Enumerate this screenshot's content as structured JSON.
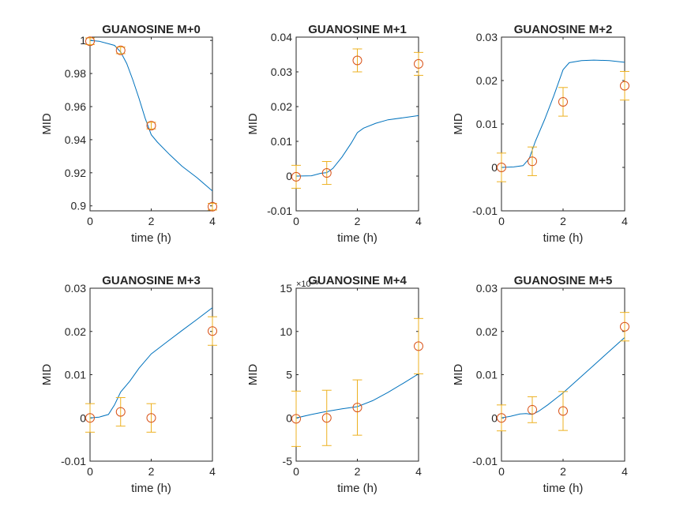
{
  "colors": {
    "model_line": "#0072BD",
    "marker": "#D95319",
    "errorbar": "#EDB120",
    "axis": "#262626",
    "background": "#ffffff"
  },
  "chart_data": [
    {
      "type": "line",
      "title": "GUANOSINE M+0",
      "xlabel": "time (h)",
      "ylabel": "MID",
      "xlim": [
        0,
        4
      ],
      "ylim": [
        0.897,
        1.002
      ],
      "xticks": [
        0,
        2,
        4
      ],
      "xtick_labels": [
        "0",
        "2",
        "4"
      ],
      "yticks": [
        0.9,
        0.92,
        0.94,
        0.96,
        0.98,
        1
      ],
      "ytick_labels": [
        "0.9",
        "0.92",
        "0.94",
        "0.96",
        "0.98",
        "1"
      ],
      "exponent_label": "",
      "series": [
        {
          "kind": "line",
          "x": [
            0,
            0.3,
            0.6,
            0.8,
            1.0,
            1.2,
            1.4,
            1.6,
            1.8,
            2.0,
            2.2,
            2.6,
            3.0,
            3.5,
            4.0
          ],
          "y": [
            1.0,
            0.9995,
            0.998,
            0.997,
            0.993,
            0.986,
            0.976,
            0.965,
            0.953,
            0.943,
            0.9385,
            0.931,
            0.924,
            0.917,
            0.909
          ]
        },
        {
          "kind": "errorbar",
          "x": [
            0,
            1,
            2,
            4
          ],
          "y": [
            0.9995,
            0.994,
            0.9485,
            0.8995
          ],
          "err": [
            0.002,
            0.002,
            0.002,
            0.002
          ]
        }
      ]
    },
    {
      "type": "line",
      "title": "GUANOSINE M+1",
      "xlabel": "time (h)",
      "ylabel": "MID",
      "xlim": [
        0,
        4
      ],
      "ylim": [
        -0.01,
        0.04
      ],
      "xticks": [
        0,
        2,
        4
      ],
      "xtick_labels": [
        "0",
        "2",
        "4"
      ],
      "yticks": [
        -0.01,
        0,
        0.01,
        0.02,
        0.03,
        0.04
      ],
      "ytick_labels": [
        "-0.01",
        "0",
        "0.01",
        "0.02",
        "0.03",
        "0.04"
      ],
      "exponent_label": "",
      "series": [
        {
          "kind": "line",
          "x": [
            0,
            0.5,
            0.8,
            1.0,
            1.2,
            1.5,
            1.8,
            2.0,
            2.2,
            2.6,
            3.0,
            3.5,
            4.0
          ],
          "y": [
            0,
            0.0001,
            0.0008,
            0.001,
            0.0022,
            0.0055,
            0.0095,
            0.0125,
            0.0138,
            0.0152,
            0.0162,
            0.0168,
            0.0174
          ]
        },
        {
          "kind": "errorbar",
          "x": [
            0,
            1,
            2,
            4
          ],
          "y": [
            -0.0002,
            0.0009,
            0.0333,
            0.0323
          ],
          "err": [
            0.0033,
            0.0033,
            0.0033,
            0.0033
          ]
        }
      ]
    },
    {
      "type": "line",
      "title": "GUANOSINE M+2",
      "xlabel": "time (h)",
      "ylabel": "MID",
      "xlim": [
        0,
        4
      ],
      "ylim": [
        -0.01,
        0.03
      ],
      "xticks": [
        0,
        2,
        4
      ],
      "xtick_labels": [
        "0",
        "2",
        "4"
      ],
      "yticks": [
        -0.01,
        0,
        0.01,
        0.02,
        0.03
      ],
      "ytick_labels": [
        "-0.01",
        "0",
        "0.01",
        "0.02",
        "0.03"
      ],
      "exponent_label": "",
      "series": [
        {
          "kind": "line",
          "x": [
            0,
            0.4,
            0.7,
            0.9,
            1.1,
            1.4,
            1.7,
            2.0,
            2.2,
            2.6,
            3.0,
            3.5,
            4.0
          ],
          "y": [
            0,
            0.0001,
            0.0004,
            0.002,
            0.006,
            0.011,
            0.0165,
            0.0225,
            0.0241,
            0.0246,
            0.0247,
            0.0246,
            0.0242
          ]
        },
        {
          "kind": "errorbar",
          "x": [
            0,
            1,
            2,
            4
          ],
          "y": [
            0,
            0.0014,
            0.0151,
            0.0188
          ],
          "err": [
            0.0033,
            0.0033,
            0.0033,
            0.0033
          ]
        }
      ]
    },
    {
      "type": "line",
      "title": "GUANOSINE M+3",
      "xlabel": "time (h)",
      "ylabel": "MID",
      "xlim": [
        0,
        4
      ],
      "ylim": [
        -0.01,
        0.03
      ],
      "xticks": [
        0,
        2,
        4
      ],
      "xtick_labels": [
        "0",
        "2",
        "4"
      ],
      "yticks": [
        -0.01,
        0,
        0.01,
        0.02,
        0.03
      ],
      "ytick_labels": [
        "-0.01",
        "0",
        "0.01",
        "0.02",
        "0.03"
      ],
      "exponent_label": "",
      "series": [
        {
          "kind": "line",
          "x": [
            0,
            0.3,
            0.6,
            0.8,
            1.0,
            1.3,
            1.6,
            2.0,
            2.5,
            3.0,
            3.5,
            4.0
          ],
          "y": [
            0,
            0.0002,
            0.0008,
            0.003,
            0.006,
            0.0085,
            0.0115,
            0.0148,
            0.0175,
            0.0202,
            0.0228,
            0.0255
          ]
        },
        {
          "kind": "errorbar",
          "x": [
            0,
            1,
            2,
            4
          ],
          "y": [
            0,
            0.0014,
            0,
            0.0201
          ],
          "err": [
            0.0033,
            0.0033,
            0.0033,
            0.0033
          ]
        }
      ]
    },
    {
      "type": "line",
      "title": "GUANOSINE M+4",
      "xlabel": "time (h)",
      "ylabel": "MID",
      "xlim": [
        0,
        4
      ],
      "ylim": [
        -5,
        15
      ],
      "xticks": [
        0,
        2,
        4
      ],
      "xtick_labels": [
        "0",
        "2",
        "4"
      ],
      "yticks": [
        -5,
        0,
        5,
        10,
        15
      ],
      "ytick_labels": [
        "-5",
        "0",
        "5",
        "10",
        "15"
      ],
      "exponent_label": "×10⁻³",
      "series": [
        {
          "kind": "line",
          "x": [
            0,
            0.5,
            1.0,
            1.5,
            2.0,
            2.5,
            3.0,
            3.5,
            4.0
          ],
          "y": [
            0,
            0.4,
            0.75,
            1.05,
            1.3,
            2.0,
            2.95,
            4.0,
            5.1
          ]
        },
        {
          "kind": "errorbar",
          "x": [
            0,
            1,
            2,
            4
          ],
          "y": [
            -0.1,
            0,
            1.2,
            8.3
          ],
          "err": [
            3.2,
            3.2,
            3.2,
            3.2
          ]
        }
      ]
    },
    {
      "type": "line",
      "title": "GUANOSINE M+5",
      "xlabel": "time (h)",
      "ylabel": "MID",
      "xlim": [
        0,
        4
      ],
      "ylim": [
        -0.01,
        0.03
      ],
      "xticks": [
        0,
        2,
        4
      ],
      "xtick_labels": [
        "0",
        "2",
        "4"
      ],
      "yticks": [
        -0.01,
        0,
        0.01,
        0.02,
        0.03
      ],
      "ytick_labels": [
        "-0.01",
        "0",
        "0.01",
        "0.02",
        "0.03"
      ],
      "exponent_label": "",
      "series": [
        {
          "kind": "line",
          "x": [
            0,
            0.3,
            0.6,
            0.8,
            1.0,
            1.2,
            1.5,
            2.0,
            2.5,
            3.0,
            3.5,
            4.0
          ],
          "y": [
            0,
            0.0004,
            0.0009,
            0.001,
            0.0008,
            0.0015,
            0.003,
            0.0058,
            0.009,
            0.0122,
            0.0154,
            0.0186
          ]
        },
        {
          "kind": "errorbar",
          "x": [
            0,
            1,
            2,
            4
          ],
          "y": [
            0,
            0.0019,
            0.0016,
            0.0211
          ],
          "err": [
            0.003,
            0.003,
            0.0045,
            0.0033
          ]
        }
      ]
    }
  ]
}
